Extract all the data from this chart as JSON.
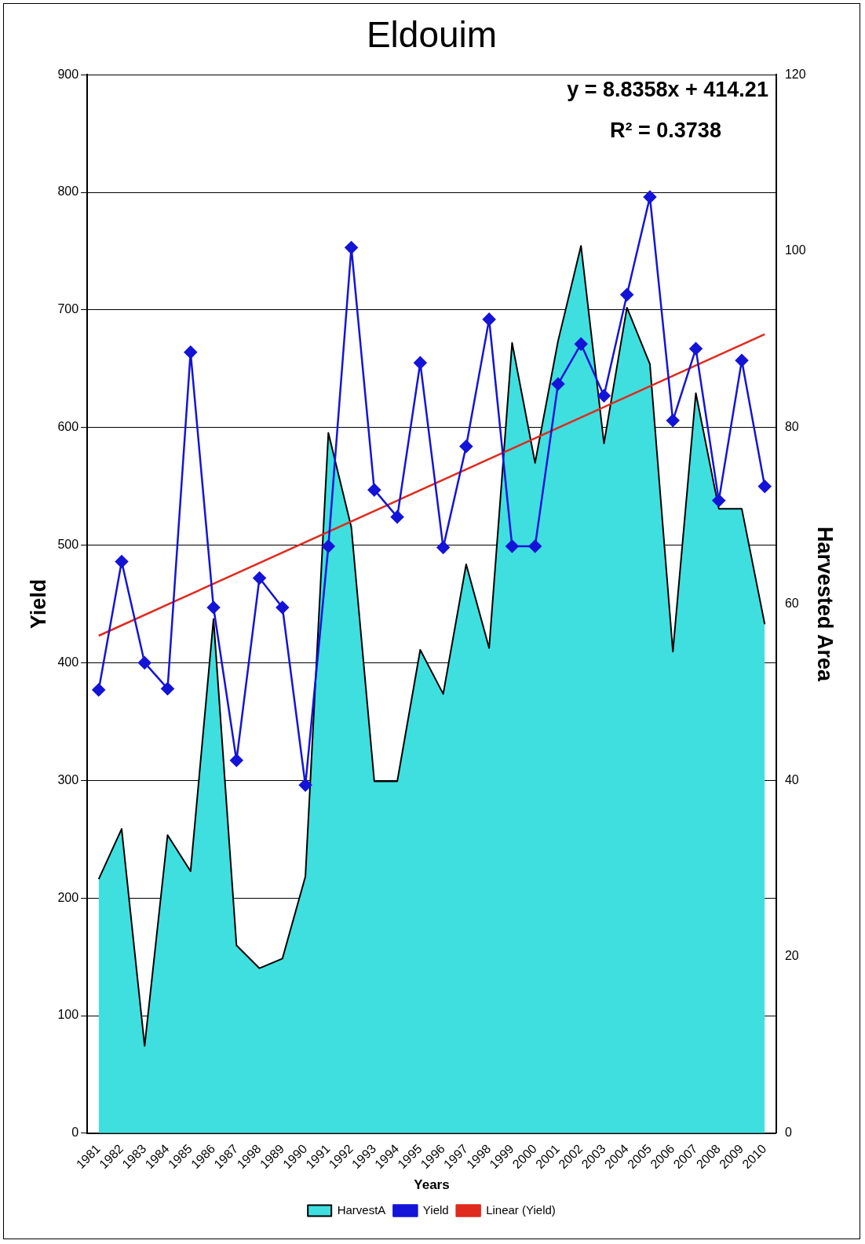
{
  "chart_data": {
    "type": "line",
    "title": "Eldouim",
    "xlabel": "Years",
    "ylabel": "Yield",
    "y2label": "Harvested Area",
    "categories": [
      "1981",
      "1982",
      "1983",
      "1984",
      "1985",
      "1986",
      "1987",
      "1998",
      "1989",
      "1990",
      "1991",
      "1992",
      "1993",
      "1994",
      "1995",
      "1996",
      "1997",
      "1998",
      "1999",
      "2000",
      "2001",
      "2002",
      "2003",
      "2004",
      "2005",
      "2006",
      "2007",
      "2008",
      "2009",
      "2010"
    ],
    "series": [
      {
        "type": "area",
        "name": "HarvestA",
        "color": "#3fdfdf",
        "axis": "y2",
        "marker": "none",
        "values": [
          28.8,
          34.5,
          9.9,
          33.8,
          29.7,
          58.3,
          21.3,
          18.7,
          19.8,
          29.1,
          79.4,
          68.7,
          39.9,
          39.9,
          54.8,
          49.8,
          64.5,
          55,
          89.6,
          76,
          89.8,
          100.6,
          78.2,
          93.6,
          87.2,
          54.6,
          83.9,
          70.8,
          70.8,
          57.7
        ]
      },
      {
        "name": "Yield",
        "color": "#1414d8",
        "axis": "y",
        "marker": "diamond",
        "values": [
          377,
          486,
          400,
          378,
          664,
          447,
          317,
          472,
          447,
          296,
          499,
          753,
          547,
          524,
          655,
          498,
          584,
          692,
          499,
          499,
          637,
          671,
          627,
          713,
          796,
          606,
          667,
          538,
          657,
          550
        ]
      },
      {
        "name": "Linear (Yield)",
        "color": "#e02a1e",
        "axis": "y",
        "marker": "none",
        "values": [
          423,
          null,
          null,
          null,
          null,
          null,
          null,
          null,
          null,
          null,
          null,
          null,
          null,
          null,
          null,
          null,
          null,
          null,
          null,
          null,
          null,
          null,
          null,
          null,
          null,
          null,
          null,
          null,
          null,
          679.3
        ]
      }
    ],
    "ylim": [
      0,
      900
    ],
    "yticks": [
      0,
      100,
      200,
      300,
      400,
      500,
      600,
      700,
      800,
      900
    ],
    "y2lim": [
      0,
      120
    ],
    "y2ticks": [
      0,
      20,
      40,
      60,
      80,
      100,
      120
    ],
    "grid": "y",
    "legend": "bottom",
    "annotations": [
      "y = 8.8358x + 414.21",
      "R² = 0.3738"
    ]
  }
}
